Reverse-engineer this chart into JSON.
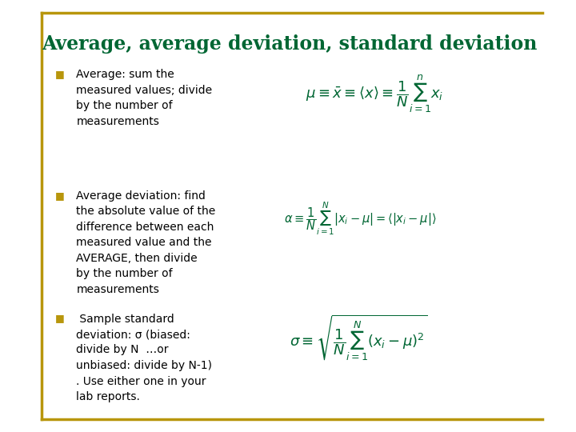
{
  "bg_color": "#ffffff",
  "border_color": "#b8960c",
  "title": "Average, average deviation, standard deviation",
  "title_color": "#006633",
  "title_fontsize": 17,
  "bullet_color": "#b8960c",
  "text_color": "#000000",
  "formula_color": "#006633",
  "bullet1": "Average: sum the\nmeasured values; divide\nby the number of\nmeasurements",
  "bullet2": "Average deviation: find\nthe absolute value of the\ndifference between each\nmeasured value and the\nAVERAGE, then divide\nby the number of\nmeasurements",
  "bullet3": " Sample standard\ndeviation: σ (biased:\ndivide by N  …or\nunbiased: divide by N-1)\n. Use either one in your\nlab reports.",
  "formula1_latex": "$\\mu \\equiv \\bar{x} \\equiv \\langle x \\rangle \\equiv \\dfrac{1}{N}\\sum_{i=1}^{n} x_i$",
  "formula2_latex": "$\\alpha \\equiv \\dfrac{1}{N}\\sum_{i=1}^{N} |x_i - \\mu| = \\langle |x_i - \\mu| \\rangle$",
  "formula3_latex": "$\\sigma \\equiv \\sqrt{\\dfrac{1}{N}\\sum_{i=1}^{N}(x_i - \\mu)^2}$"
}
